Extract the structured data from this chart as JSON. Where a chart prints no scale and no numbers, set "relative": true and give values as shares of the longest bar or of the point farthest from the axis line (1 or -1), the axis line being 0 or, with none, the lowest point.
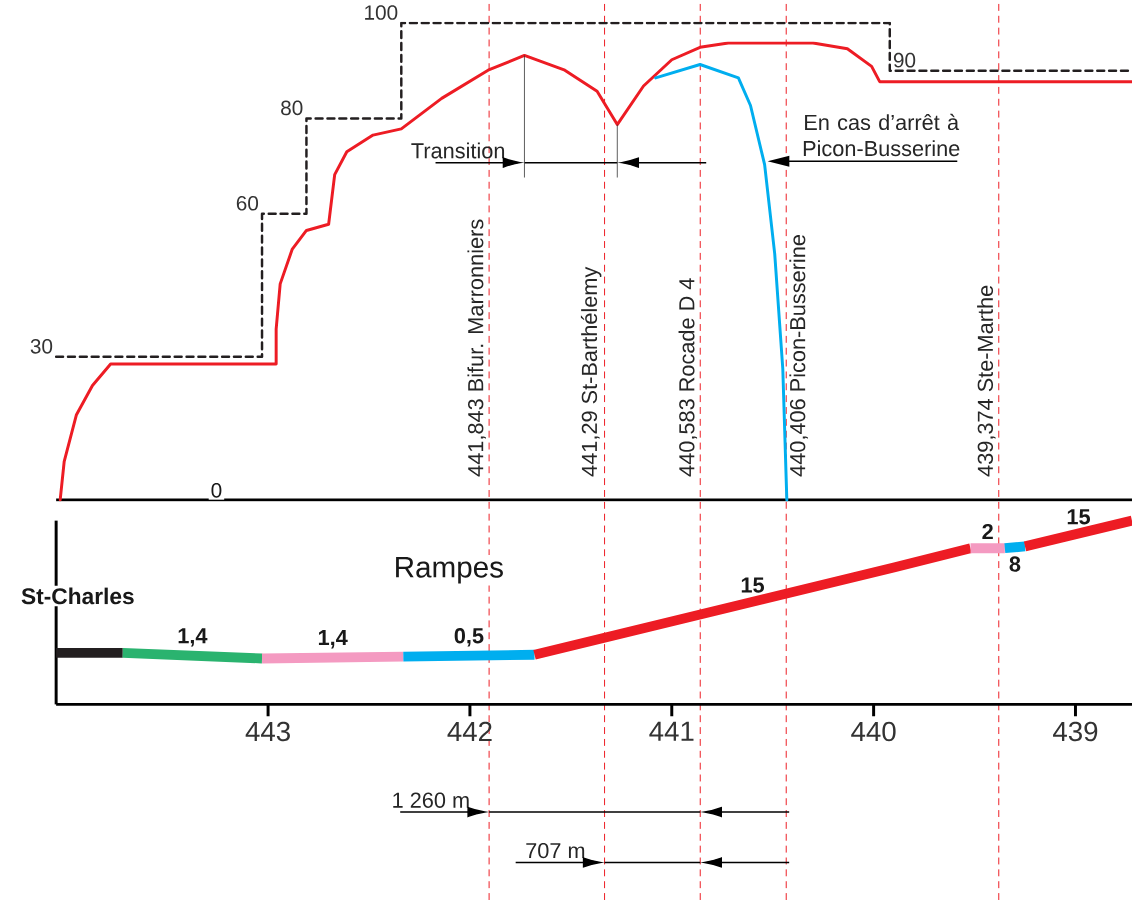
{
  "chart_data": [
    {
      "type": "line",
      "xlim": [
        444.05,
        438.72
      ],
      "ylim": [
        0,
        104
      ],
      "series": [
        {
          "type": "step",
          "color": "#231f20",
          "line_style": "dashed",
          "x": [
            444.05,
            443.03,
            442.81,
            442.34,
            439.92,
            438.72
          ],
          "values": [
            30,
            60,
            80,
            100,
            90,
            90
          ],
          "value_labels": [
            "30",
            "60",
            "80",
            "100",
            "90",
            null
          ]
        },
        {
          "color": "#ed1c24",
          "x": [
            444.03,
            444.01,
            443.95,
            443.87,
            443.78,
            442.96,
            442.96,
            442.94,
            442.88,
            442.81,
            442.7,
            442.67,
            442.61,
            442.48,
            442.34,
            442.14,
            441.91,
            441.73,
            441.53,
            441.37,
            441.27,
            441.14,
            441.0,
            440.86,
            440.72,
            440.3,
            440.13,
            440.01,
            439.97,
            438.72
          ],
          "values": [
            0,
            8.1,
            17.8,
            24.0,
            28.5,
            28.5,
            35.8,
            45.3,
            52.6,
            56.5,
            57.8,
            68.2,
            73.0,
            76.5,
            77.8,
            84.2,
            90.1,
            93.2,
            90.1,
            85.7,
            78.7,
            86.8,
            92.3,
            94.9,
            95.8,
            95.8,
            94.6,
            90.9,
            87.7,
            87.7
          ]
        },
        {
          "color": "#00aeef",
          "x": [
            441.08,
            440.86,
            440.67,
            440.61,
            440.54,
            440.49,
            440.45,
            440.43
          ],
          "values": [
            88.5,
            91.3,
            88.5,
            82.7,
            70.3,
            51.6,
            27.5,
            0
          ]
        }
      ],
      "ref_lines": [
        {
          "axis": "x",
          "value": 441.905,
          "label": "441,843 Bifur. Marronniers",
          "color": "#ed1c24",
          "line_style": "dashed"
        },
        {
          "axis": "x",
          "value": 441.333,
          "label": "441,29 St-Barthélemy",
          "color": "#ed1c24",
          "line_style": "dashed"
        },
        {
          "axis": "x",
          "value": 440.859,
          "label": "440,583 Rocade D 4",
          "color": "#ed1c24",
          "line_style": "dashed"
        },
        {
          "axis": "x",
          "value": 440.433,
          "label": "440,406 Picon-Busserine",
          "color": "#ed1c24",
          "line_style": "dashed"
        },
        {
          "axis": "x",
          "value": 439.38,
          "label": "439,374 Ste-Marthe",
          "color": "#ed1c24",
          "line_style": "dashed"
        }
      ],
      "annotations": [
        "0",
        {
          "text": "Transition",
          "x": 441.73,
          "y": 93.2
        },
        {
          "text": "En cas d’arrêt à Picon-Busserine",
          "x": 440.54,
          "y": 71
        }
      ]
    },
    {
      "type": "line",
      "relative": true,
      "xlim": [
        444.05,
        438.72
      ],
      "xticks": [
        443,
        442,
        441,
        440,
        439
      ],
      "series": [
        {
          "color": "#231f20",
          "x": [
            444.05,
            443.72
          ],
          "values": [
            0.28,
            0.28
          ]
        },
        {
          "name": "1,4",
          "color": "#2ab36f",
          "x": [
            443.72,
            443.03
          ],
          "values": [
            0.28,
            0.25
          ]
        },
        {
          "name": "1,4",
          "color": "#f49ac1",
          "x": [
            443.03,
            442.33
          ],
          "values": [
            0.25,
            0.26
          ]
        },
        {
          "name": "0,5",
          "color": "#00aeef",
          "x": [
            442.33,
            441.68
          ],
          "values": [
            0.26,
            0.27
          ]
        },
        {
          "name": "15",
          "color": "#ed1c24",
          "x": [
            441.68,
            439.9,
            439.52
          ],
          "values": [
            0.27,
            0.745,
            0.85
          ]
        },
        {
          "name": "2",
          "color": "#f49ac1",
          "x": [
            439.52,
            439.35
          ],
          "values": [
            0.85,
            0.85
          ]
        },
        {
          "name": "8",
          "color": "#00aeef",
          "x": [
            439.35,
            439.25
          ],
          "values": [
            0.85,
            0.86
          ]
        },
        {
          "name": "15",
          "color": "#ed1c24",
          "x": [
            439.25,
            438.72
          ],
          "values": [
            0.86,
            1
          ]
        }
      ],
      "annotations": [
        "Rampes",
        "St-Charles",
        "1 260 m",
        "707 m"
      ]
    }
  ]
}
